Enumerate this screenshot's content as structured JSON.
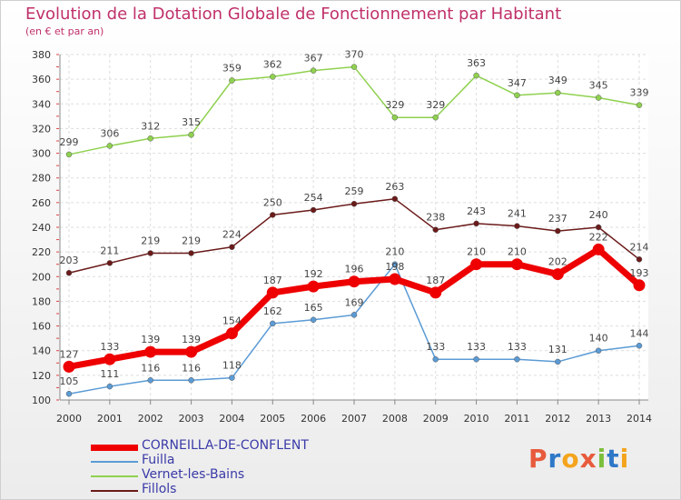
{
  "title": "Evolution de la Dotation Globale de Fonctionnement par Habitant",
  "subtitle": "(en € et par an)",
  "logo": "Proxiti",
  "chart_data": {
    "type": "line",
    "x": [
      2000,
      2001,
      2002,
      2003,
      2004,
      2005,
      2006,
      2007,
      2008,
      2009,
      2010,
      2011,
      2012,
      2013,
      2014
    ],
    "ylim": [
      100,
      380
    ],
    "yticks": [
      100,
      120,
      140,
      160,
      180,
      200,
      220,
      240,
      260,
      280,
      300,
      320,
      340,
      360,
      380
    ],
    "grid": true,
    "legend": "bottom-left",
    "series": [
      {
        "name": "CORNEILLA-DE-CONFLENT",
        "color": "#ee0000",
        "values": [
          127,
          133,
          139,
          139,
          154,
          187,
          192,
          196,
          198,
          187,
          210,
          210,
          202,
          222,
          193
        ]
      },
      {
        "name": "Fuilla",
        "color": "#5b9bd5",
        "values": [
          105,
          111,
          116,
          116,
          118,
          162,
          165,
          169,
          210,
          133,
          133,
          133,
          131,
          140,
          144
        ]
      },
      {
        "name": "Vernet-les-Bains",
        "color": "#8fd14f",
        "values": [
          299,
          306,
          312,
          315,
          359,
          362,
          367,
          370,
          329,
          329,
          363,
          347,
          349,
          345,
          339
        ]
      },
      {
        "name": "Fillols",
        "color": "#6b1a1a",
        "values": [
          203,
          211,
          219,
          219,
          224,
          250,
          254,
          259,
          263,
          238,
          243,
          241,
          237,
          240,
          214
        ]
      }
    ]
  }
}
